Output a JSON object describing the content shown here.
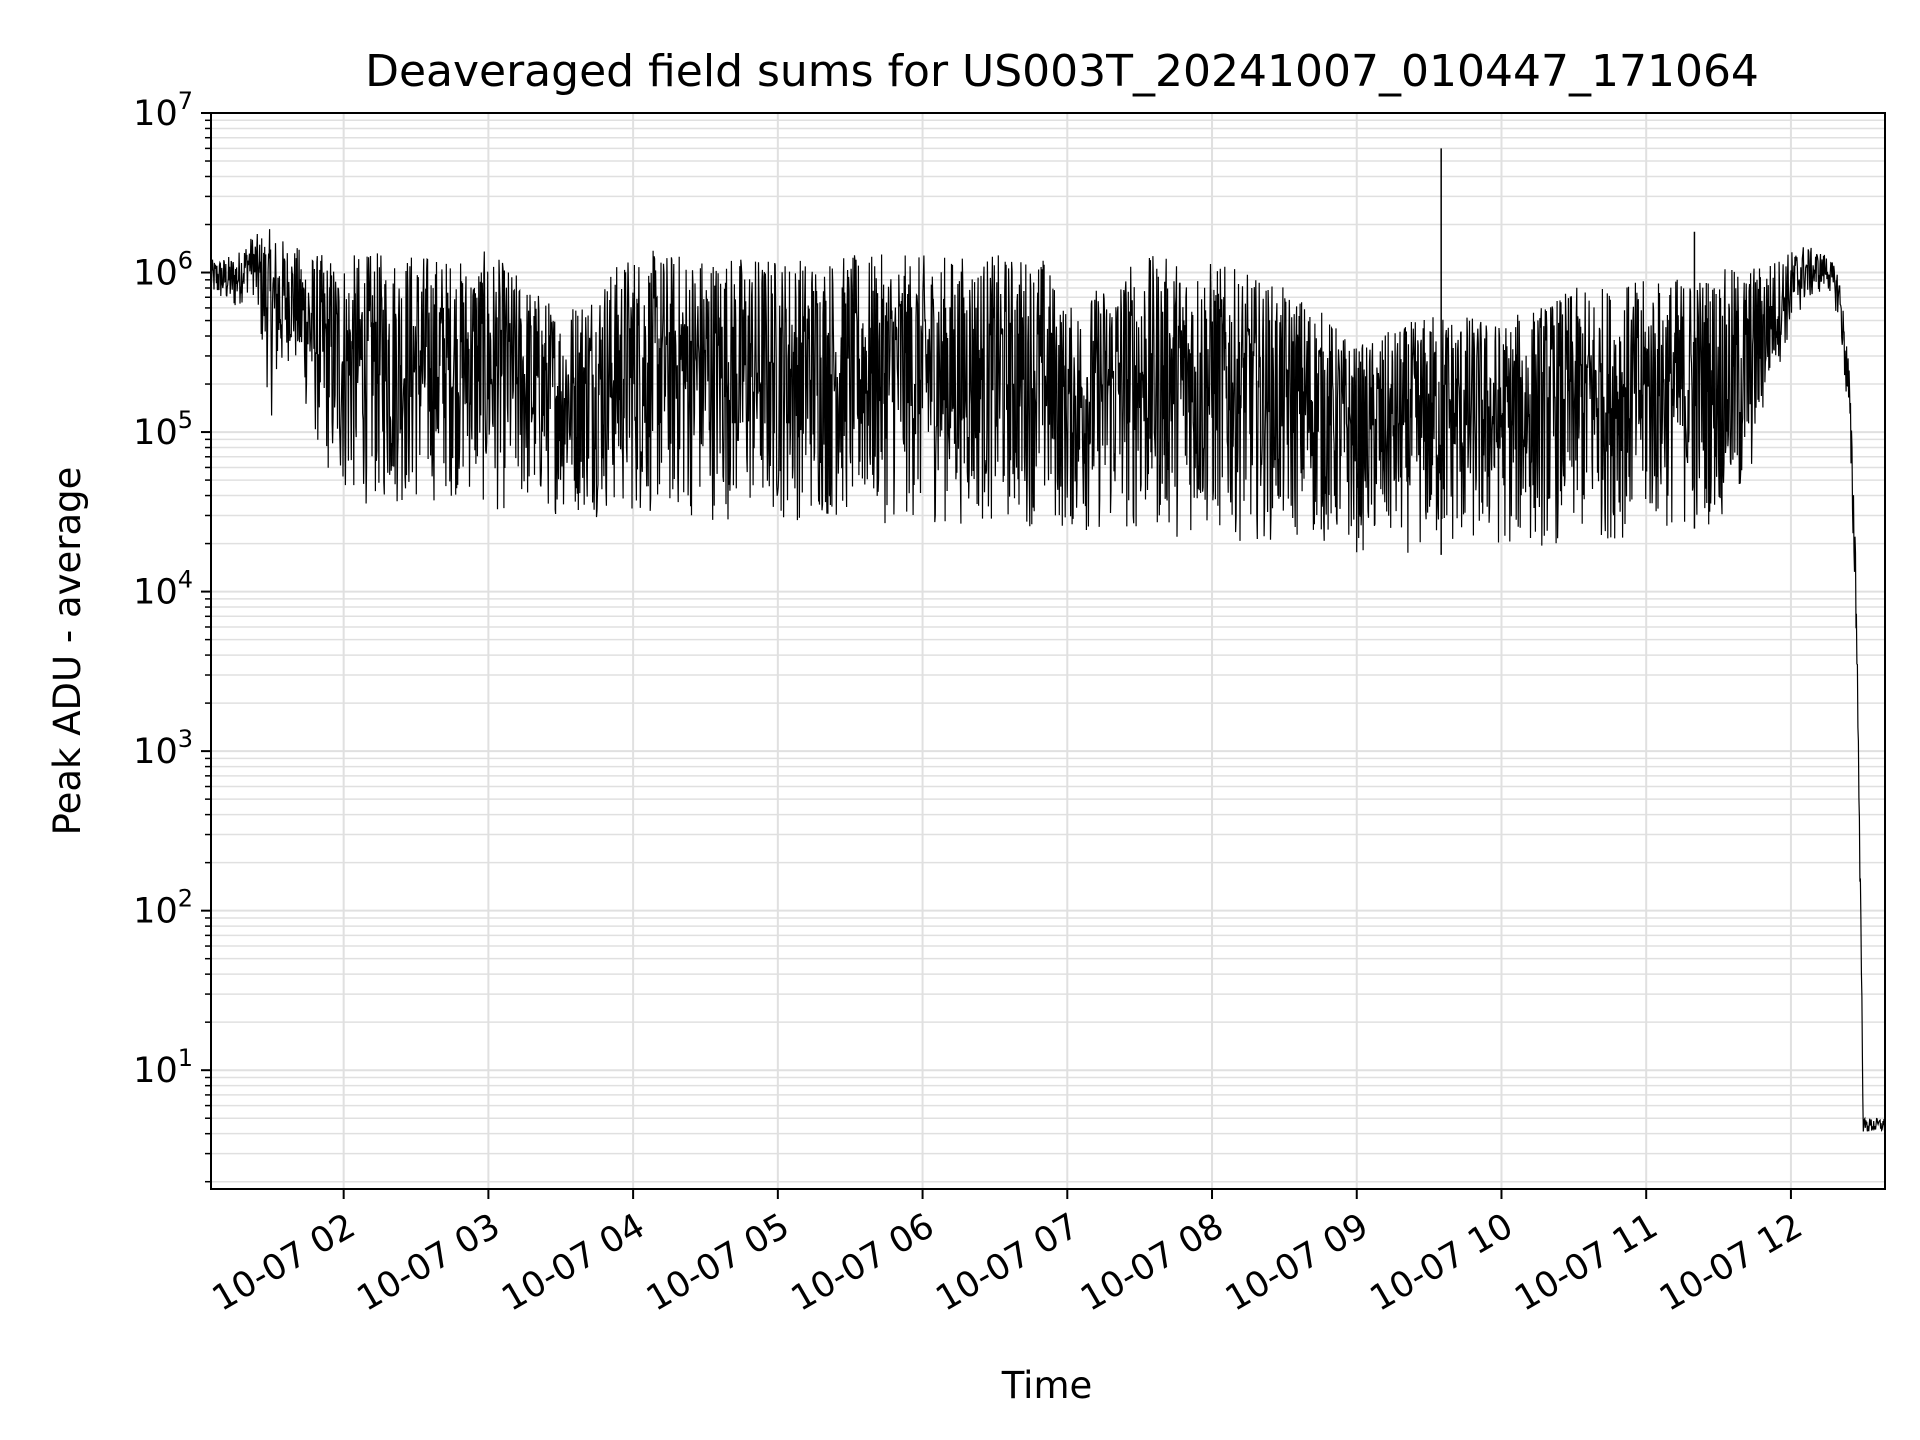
{
  "chart_data": {
    "type": "line",
    "title": "Deaveraged field sums for US003T_20241007_010447_171064",
    "xlabel": "Time",
    "ylabel": "Peak ADU - average",
    "yscale": "log",
    "ylim": [
      1.8,
      10000000
    ],
    "xlim": [
      "2024-10-07 01:05",
      "2024-10-07 12:39"
    ],
    "grid": true,
    "line_color": "#000000",
    "grid_color": "#e0e0e0",
    "x_ticks": [
      {
        "x": "2024-10-07 02:00",
        "label": "10-07 02"
      },
      {
        "x": "2024-10-07 03:00",
        "label": "10-07 03"
      },
      {
        "x": "2024-10-07 04:00",
        "label": "10-07 04"
      },
      {
        "x": "2024-10-07 05:00",
        "label": "10-07 05"
      },
      {
        "x": "2024-10-07 06:00",
        "label": "10-07 06"
      },
      {
        "x": "2024-10-07 07:00",
        "label": "10-07 07"
      },
      {
        "x": "2024-10-07 08:00",
        "label": "10-07 08"
      },
      {
        "x": "2024-10-07 09:00",
        "label": "10-07 09"
      },
      {
        "x": "2024-10-07 10:00",
        "label": "10-07 10"
      },
      {
        "x": "2024-10-07 11:00",
        "label": "10-07 11"
      },
      {
        "x": "2024-10-07 12:00",
        "label": "10-07 12"
      }
    ],
    "y_ticks": [
      {
        "value": 10,
        "base": "10",
        "exp": "1"
      },
      {
        "value": 100,
        "base": "10",
        "exp": "2"
      },
      {
        "value": 1000,
        "base": "10",
        "exp": "3"
      },
      {
        "value": 10000,
        "base": "10",
        "exp": "4"
      },
      {
        "value": 100000,
        "base": "10",
        "exp": "5"
      },
      {
        "value": 1000000,
        "base": "10",
        "exp": "6"
      },
      {
        "value": 10000000,
        "base": "10",
        "exp": "7"
      }
    ],
    "series": [
      {
        "envelope": [
          {
            "x": "2024-10-07 01:05",
            "low": 700000,
            "high": 1200000
          },
          {
            "x": "2024-10-07 01:15",
            "low": 550000,
            "high": 1300000
          },
          {
            "x": "2024-10-07 01:22",
            "low": 800000,
            "high": 1700000
          },
          {
            "x": "2024-10-07 01:30",
            "low": 120000,
            "high": 1900000
          },
          {
            "x": "2024-10-07 01:38",
            "low": 300000,
            "high": 1500000
          },
          {
            "x": "2024-10-07 01:45",
            "low": 120000,
            "high": 1400000
          },
          {
            "x": "2024-10-07 01:52",
            "low": 55000,
            "high": 1300000
          },
          {
            "x": "2024-10-07 02:00",
            "low": 35000,
            "high": 1300000
          },
          {
            "x": "2024-10-07 02:30",
            "low": 32000,
            "high": 1400000
          },
          {
            "x": "2024-10-07 02:50",
            "low": 40000,
            "high": 1200000
          },
          {
            "x": "2024-10-07 03:00",
            "low": 30000,
            "high": 1400000
          },
          {
            "x": "2024-10-07 03:30",
            "low": 30000,
            "high": 600000
          },
          {
            "x": "2024-10-07 04:00",
            "low": 28000,
            "high": 1400000
          },
          {
            "x": "2024-10-07 05:00",
            "low": 27000,
            "high": 1300000
          },
          {
            "x": "2024-10-07 06:00",
            "low": 26000,
            "high": 1300000
          },
          {
            "x": "2024-10-07 06:50",
            "low": 25000,
            "high": 1300000
          },
          {
            "x": "2024-10-07 07:00",
            "low": 22000,
            "high": 600000
          },
          {
            "x": "2024-10-07 07:30",
            "low": 22000,
            "high": 1300000
          },
          {
            "x": "2024-10-07 08:00",
            "low": 21000,
            "high": 1200000
          },
          {
            "x": "2024-10-07 08:40",
            "low": 20000,
            "high": 700000
          },
          {
            "x": "2024-10-07 09:00",
            "low": 17000,
            "high": 350000
          },
          {
            "x": "2024-10-07 09:35",
            "low": 17000,
            "high": 600000
          },
          {
            "x": "2024-10-07 10:00",
            "low": 18000,
            "high": 500000
          },
          {
            "x": "2024-10-07 10:30",
            "low": 19000,
            "high": 800000
          },
          {
            "x": "2024-10-07 11:00",
            "low": 22000,
            "high": 900000
          },
          {
            "x": "2024-10-07 11:40",
            "low": 28000,
            "high": 1100000
          },
          {
            "x": "2024-10-07 11:52",
            "low": 200000,
            "high": 1200000
          },
          {
            "x": "2024-10-07 12:05",
            "low": 600000,
            "high": 1500000
          },
          {
            "x": "2024-10-07 12:15",
            "low": 800000,
            "high": 1300000
          },
          {
            "x": "2024-10-07 12:20",
            "low": 500000,
            "high": 1000000
          },
          {
            "x": "2024-10-07 12:24",
            "low": 100000,
            "high": 300000
          },
          {
            "x": "2024-10-07 12:27",
            "low": 5000,
            "high": 20000
          },
          {
            "x": "2024-10-07 12:29",
            "low": 60,
            "high": 100
          },
          {
            "x": "2024-10-07 12:30",
            "low": 4,
            "high": 5
          },
          {
            "x": "2024-10-07 12:39",
            "low": 4,
            "high": 5
          }
        ],
        "spikes": [
          {
            "x": "2024-10-07 09:35",
            "value": 6000000
          },
          {
            "x": "2024-10-07 11:20",
            "value": 1800000
          }
        ]
      }
    ]
  }
}
